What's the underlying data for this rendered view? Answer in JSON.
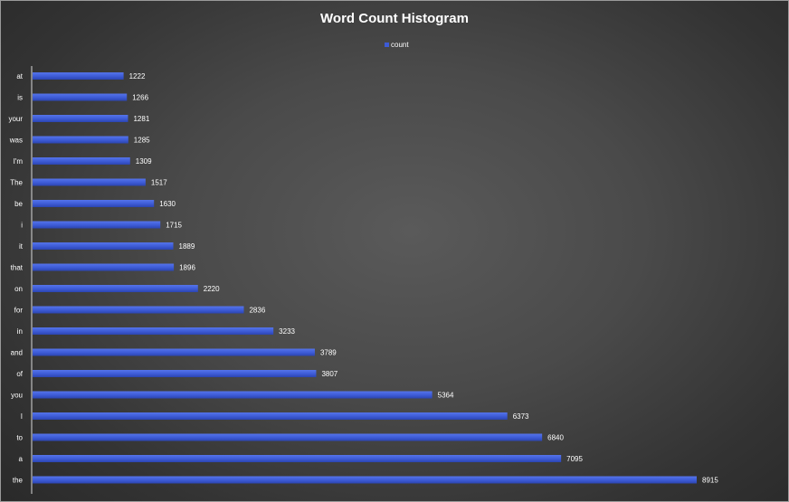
{
  "chart_data": {
    "type": "bar",
    "orientation": "horizontal",
    "title": "Word Count Histogram",
    "xlabel": "",
    "ylabel": "",
    "legend": {
      "placement": "top-center",
      "entries": [
        "count"
      ]
    },
    "grid": false,
    "xlim": [
      0,
      9000
    ],
    "categories": [
      "at",
      "is",
      "your",
      "was",
      "I'm",
      "The",
      "be",
      "i",
      "it",
      "that",
      "on",
      "for",
      "in",
      "and",
      "of",
      "you",
      "I",
      "to",
      "a",
      "the"
    ],
    "series": [
      {
        "name": "count",
        "values": [
          1222,
          1266,
          1281,
          1285,
          1309,
          1517,
          1630,
          1715,
          1889,
          1896,
          2220,
          2836,
          3233,
          3789,
          3807,
          5364,
          6373,
          6840,
          7095,
          8915
        ]
      }
    ],
    "data_labels": true
  },
  "colors": {
    "bar": "#3d5bd6",
    "text": "#ffffff"
  }
}
